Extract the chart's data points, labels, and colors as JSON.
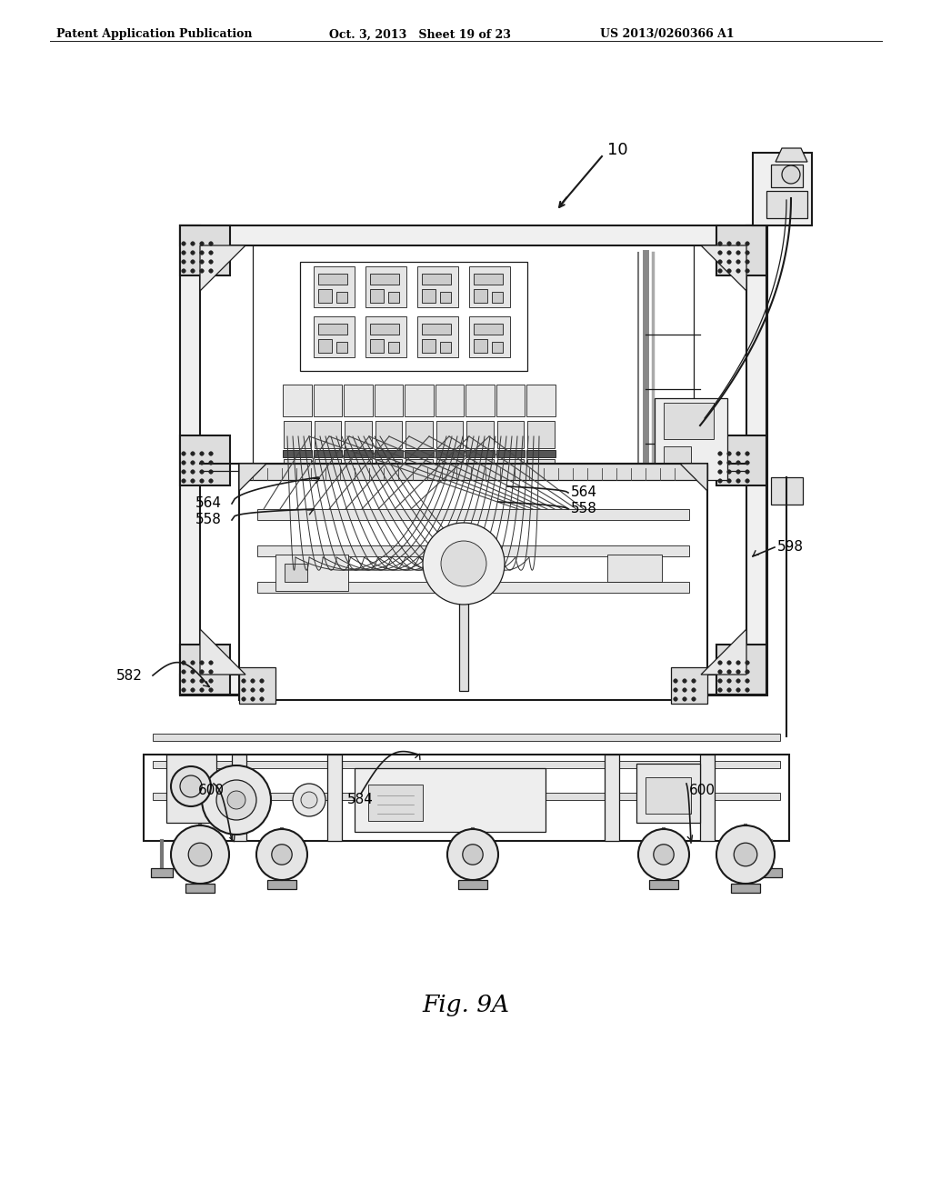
{
  "background_color": "#ffffff",
  "header_left": "Patent Application Publication",
  "header_mid": "Oct. 3, 2013   Sheet 19 of 23",
  "header_right": "US 2013/0260366 A1",
  "fig_label": "Fig. 9A",
  "lc": "#1a1a1a",
  "lw_heavy": 2.2,
  "lw_med": 1.5,
  "lw_thin": 0.9,
  "lw_very_thin": 0.6
}
